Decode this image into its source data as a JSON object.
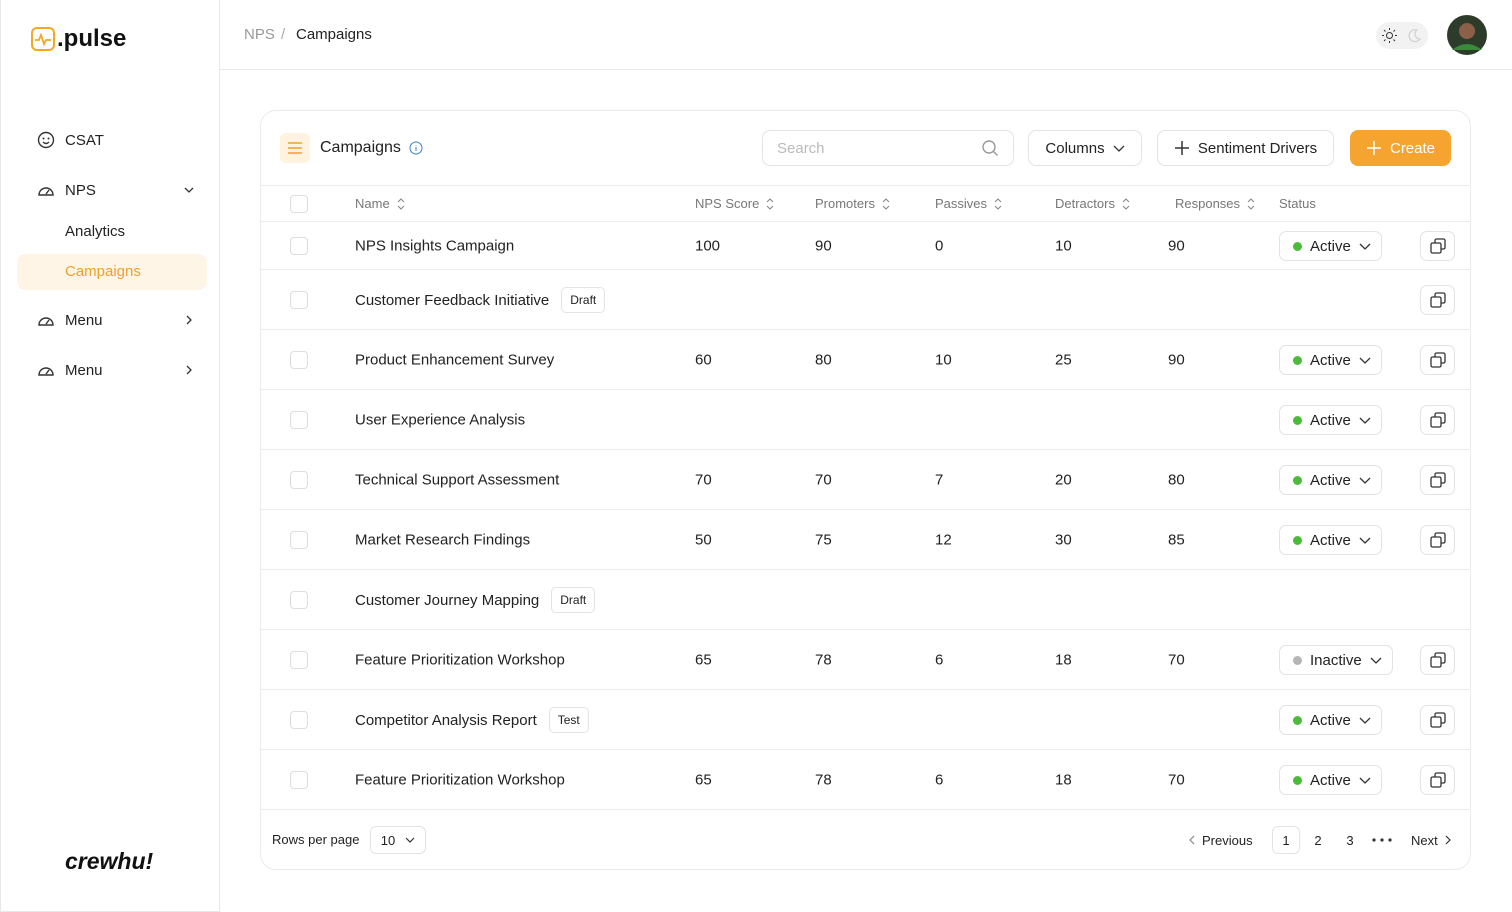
{
  "sidebar": {
    "logo": ".pulse",
    "nav": [
      {
        "label": "CSAT"
      },
      {
        "label": "NPS",
        "children": [
          "Analytics",
          "Campaigns"
        ]
      },
      {
        "label": "Menu"
      },
      {
        "label": "Menu"
      }
    ],
    "footer": "crewhu!"
  },
  "header": {
    "breadcrumb": [
      "NPS",
      "/",
      "Campaigns"
    ]
  },
  "card": {
    "title": "Campaigns",
    "search_placeholder": "Search",
    "columns_button": "Columns",
    "drivers_button": "Sentiment Drivers",
    "create_button": "Create"
  },
  "table": {
    "columns": [
      "Name",
      "NPS Score",
      "Promoters",
      "Passives",
      "Detractors",
      "Responses",
      "Status"
    ],
    "rows": [
      {
        "name": "NPS Insights Campaign",
        "values": [
          100,
          90,
          0,
          10,
          90
        ],
        "status": "Active",
        "copy": true
      },
      {
        "name": "Customer Feedback Initiative",
        "tag": "Draft",
        "values": null,
        "copy": true
      },
      {
        "name": "Product Enhancement Survey",
        "values": [
          60,
          80,
          10,
          25,
          90
        ],
        "status": "Active",
        "copy": true
      },
      {
        "name": "User Experience Analysis",
        "values": null,
        "status": "Active",
        "copy": true
      },
      {
        "name": "Technical Support Assessment",
        "values": [
          70,
          70,
          7,
          20,
          80
        ],
        "status": "Active",
        "copy": true
      },
      {
        "name": "Market Research Findings",
        "values": [
          50,
          75,
          12,
          30,
          85
        ],
        "status": "Active",
        "copy": true
      },
      {
        "name": "Customer Journey Mapping",
        "tag": "Draft",
        "values": null,
        "copy": false
      },
      {
        "name": "Feature Prioritization Workshop",
        "values": [
          65,
          78,
          6,
          18,
          70
        ],
        "status": "Inactive",
        "copy": true
      },
      {
        "name": "Competitor Analysis Report",
        "tag": "Test",
        "values": null,
        "status": "Active",
        "copy": true
      },
      {
        "name": "Feature Prioritization Workshop",
        "values": [
          65,
          78,
          6,
          18,
          70
        ],
        "status": "Active",
        "copy": true
      }
    ]
  },
  "footer": {
    "rows_per_page_label": "Rows per page",
    "rows_per_page": 10,
    "previous": "Previous",
    "pages": [
      1,
      2,
      3
    ],
    "next": "Next"
  }
}
